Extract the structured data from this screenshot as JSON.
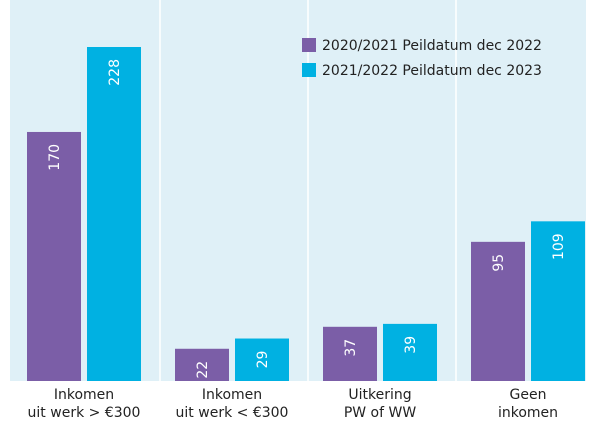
{
  "chart_data": {
    "type": "bar",
    "categories": [
      [
        "Inkomen",
        "uit werk > €300"
      ],
      [
        "Inkomen",
        "uit werk < €300"
      ],
      [
        "Uitkering",
        "PW of WW"
      ],
      [
        "Geen",
        "inkomen"
      ]
    ],
    "series": [
      {
        "name": "2020/2021 Peildatum dec 2022",
        "color": "#7b5ea7",
        "values": [
          170,
          22,
          37,
          95
        ]
      },
      {
        "name": "2021/2022 Peildatum dec 2023",
        "color": "#00b1e2",
        "values": [
          228,
          29,
          39,
          109
        ]
      }
    ]
  }
}
